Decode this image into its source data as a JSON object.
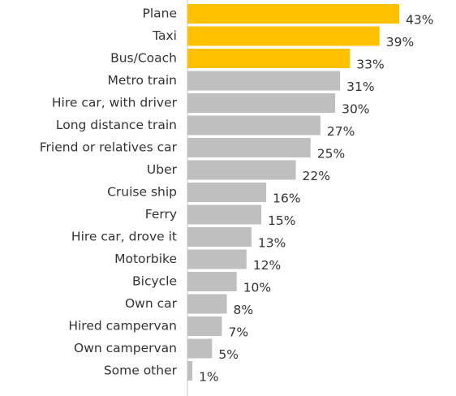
{
  "chart_data": {
    "type": "bar",
    "orientation": "horizontal",
    "categories": [
      "Plane",
      "Taxi",
      "Bus/Coach",
      "Metro train",
      "Hire car, with driver",
      "Long distance train",
      "Friend or relatives car",
      "Uber",
      "Cruise ship",
      "Ferry",
      "Hire car, drove it",
      "Motorbike",
      "Bicycle",
      "Own car",
      "Hired campervan",
      "Own campervan",
      "Some other"
    ],
    "values": [
      43,
      39,
      33,
      31,
      30,
      27,
      25,
      22,
      16,
      15,
      13,
      12,
      10,
      8,
      7,
      5,
      1
    ],
    "value_labels": [
      "43%",
      "39%",
      "33%",
      "31%",
      "30%",
      "27%",
      "25%",
      "22%",
      "16%",
      "15%",
      "13%",
      "12%",
      "10%",
      "8%",
      "7%",
      "5%",
      "1%"
    ],
    "colors": [
      "#ffc000",
      "#ffc000",
      "#ffc000",
      "#bfbfbf",
      "#bfbfbf",
      "#bfbfbf",
      "#bfbfbf",
      "#bfbfbf",
      "#bfbfbf",
      "#bfbfbf",
      "#bfbfbf",
      "#bfbfbf",
      "#bfbfbf",
      "#bfbfbf",
      "#bfbfbf",
      "#bfbfbf",
      "#bfbfbf"
    ]
  }
}
